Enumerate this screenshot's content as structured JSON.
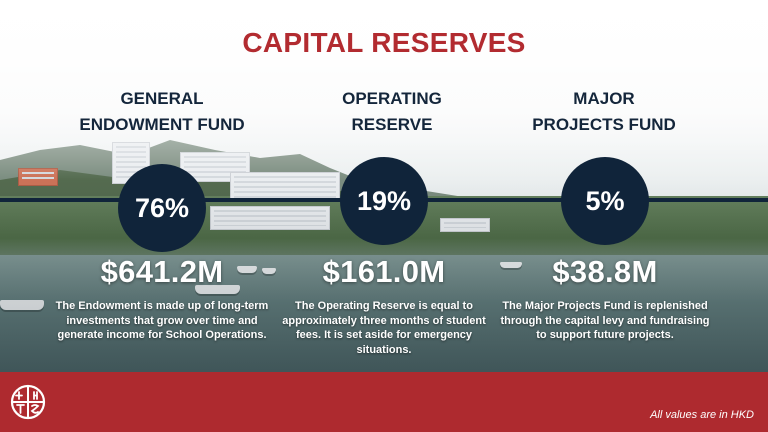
{
  "title": "CAPITAL RESERVES",
  "funds": [
    {
      "heading_line1": "GENERAL",
      "heading_line2": "ENDOWMENT FUND",
      "percent": "76%",
      "amount": "$641.2M",
      "description": "The Endowment is made up of long-term investments that grow over time and generate income for School Operations."
    },
    {
      "heading_line1": "OPERATING",
      "heading_line2": "RESERVE",
      "percent": "19%",
      "amount": "$161.0M",
      "description": "The Operating Reserve is equal to approximately three months of student fees. It is set aside for emergency situations."
    },
    {
      "heading_line1": "MAJOR",
      "heading_line2": "PROJECTS FUND",
      "percent": "5%",
      "amount": "$38.8M",
      "description": "The Major Projects Fund is replenished through the capital levy and fundraising to support future projects."
    }
  ],
  "footer": {
    "note": "All values are in HKD"
  },
  "colors": {
    "accent_red": "#b22b30",
    "navy": "#10243a",
    "footer_red": "#ae2a2f"
  },
  "icons": {
    "logo": "school-crest-logo-icon"
  }
}
